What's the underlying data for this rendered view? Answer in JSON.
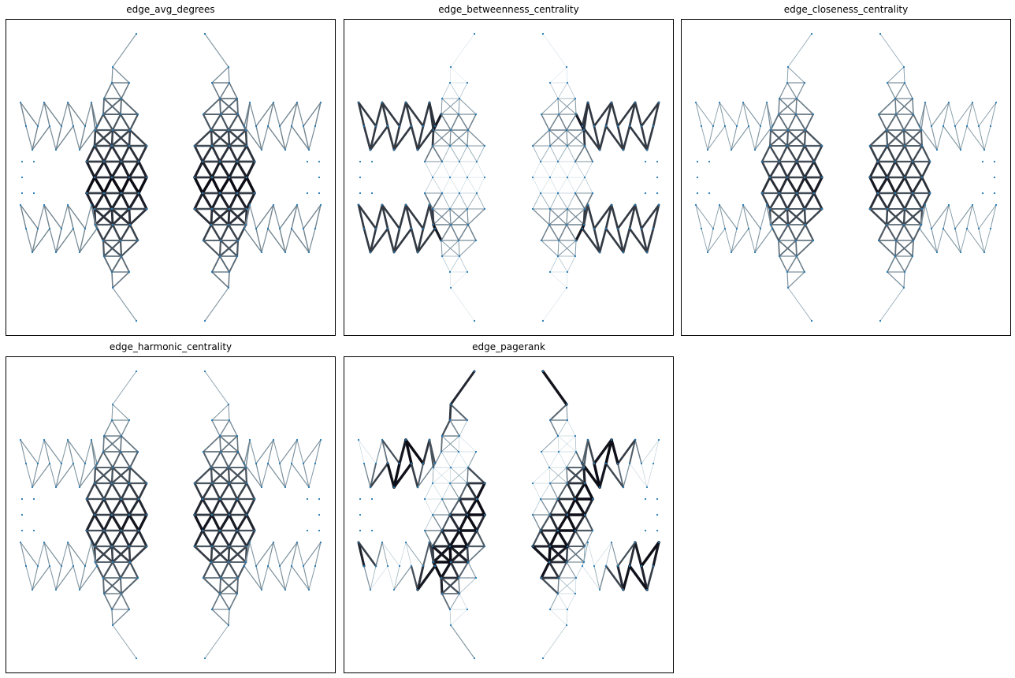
{
  "figure": {
    "panels": [
      {
        "title": "edge_avg_degrees",
        "metric": "avg_degrees"
      },
      {
        "title": "edge_betweenness_centrality",
        "metric": "betweenness"
      },
      {
        "title": "edge_closeness_centrality",
        "metric": "closeness"
      },
      {
        "title": "edge_harmonic_centrality",
        "metric": "harmonic"
      },
      {
        "title": "edge_pagerank",
        "metric": "pagerank"
      }
    ]
  },
  "colors": {
    "node": "#1f77b4",
    "edge_low": "#a9c6d3",
    "edge_high": "#0b0b14",
    "frame": "#000000"
  }
}
